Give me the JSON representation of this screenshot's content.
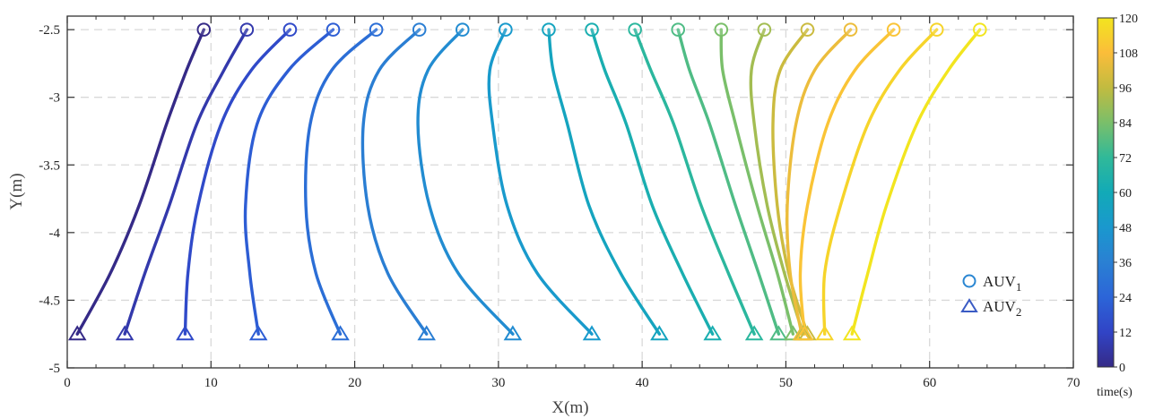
{
  "chart_data": {
    "type": "line",
    "xlabel": "X(m)",
    "ylabel": "Y(m)",
    "xlim": [
      0,
      70
    ],
    "ylim": [
      -5,
      -2.4
    ],
    "xticks": [
      0,
      10,
      20,
      30,
      40,
      50,
      60,
      70
    ],
    "yticks": [
      -5,
      -4.5,
      -4,
      -3.5,
      -3,
      -2.5
    ],
    "ytick_labels": [
      "-5",
      "-4.5",
      "-4",
      "-3.5",
      "-3",
      "-2.5"
    ],
    "grid": true,
    "legend": {
      "position": "right",
      "entries": [
        {
          "marker": "circle",
          "label": "AUV",
          "subscript": "1"
        },
        {
          "marker": "triangle",
          "label": "AUV",
          "subscript": "2"
        }
      ]
    },
    "colorbar": {
      "label": "time(s)",
      "range": [
        0,
        120
      ],
      "ticks": [
        0,
        12,
        24,
        36,
        48,
        60,
        72,
        84,
        96,
        108,
        120
      ],
      "colormap": "parula"
    },
    "series": [
      {
        "time": 0,
        "x": [
          9.5,
          8.3,
          6.9,
          5.0,
          3.0,
          0.7
        ],
        "y": [
          -2.5,
          -2.8,
          -3.2,
          -3.8,
          -4.3,
          -4.75
        ]
      },
      {
        "time": 7,
        "x": [
          12.5,
          10.9,
          9.0,
          7.1,
          5.4,
          4.0
        ],
        "y": [
          -2.5,
          -2.8,
          -3.2,
          -3.8,
          -4.3,
          -4.75
        ]
      },
      {
        "time": 14,
        "x": [
          15.5,
          12.8,
          10.7,
          9.1,
          8.4,
          8.2
        ],
        "y": [
          -2.5,
          -2.8,
          -3.2,
          -3.8,
          -4.3,
          -4.75
        ]
      },
      {
        "time": 21,
        "x": [
          18.5,
          15.4,
          13.2,
          12.4,
          12.7,
          13.3
        ],
        "y": [
          -2.5,
          -2.8,
          -3.2,
          -3.8,
          -4.3,
          -4.75
        ]
      },
      {
        "time": 28,
        "x": [
          21.5,
          18.4,
          16.9,
          16.6,
          17.3,
          19.0
        ],
        "y": [
          -2.5,
          -2.8,
          -3.2,
          -3.8,
          -4.3,
          -4.75
        ]
      },
      {
        "time": 35,
        "x": [
          24.5,
          21.7,
          20.6,
          20.9,
          22.3,
          25.0
        ],
        "y": [
          -2.5,
          -2.8,
          -3.2,
          -3.8,
          -4.3,
          -4.75
        ]
      },
      {
        "time": 42,
        "x": [
          27.5,
          25.1,
          24.4,
          25.2,
          27.2,
          31.0
        ],
        "y": [
          -2.5,
          -2.8,
          -3.2,
          -3.8,
          -4.3,
          -4.75
        ]
      },
      {
        "time": 49,
        "x": [
          30.5,
          29.4,
          29.6,
          30.6,
          32.7,
          36.5
        ],
        "y": [
          -2.5,
          -2.8,
          -3.2,
          -3.8,
          -4.3,
          -4.75
        ]
      },
      {
        "time": 56,
        "x": [
          33.5,
          33.8,
          34.8,
          36.3,
          38.5,
          41.2
        ],
        "y": [
          -2.5,
          -2.8,
          -3.2,
          -3.8,
          -4.3,
          -4.75
        ]
      },
      {
        "time": 63,
        "x": [
          36.5,
          37.4,
          38.9,
          40.7,
          42.8,
          44.9
        ],
        "y": [
          -2.5,
          -2.8,
          -3.2,
          -3.8,
          -4.3,
          -4.75
        ]
      },
      {
        "time": 70,
        "x": [
          39.5,
          40.6,
          42.2,
          44.1,
          46.0,
          47.8
        ],
        "y": [
          -2.5,
          -2.8,
          -3.2,
          -3.8,
          -4.3,
          -4.75
        ]
      },
      {
        "time": 77,
        "x": [
          42.5,
          43.3,
          44.7,
          46.5,
          48.1,
          49.5
        ],
        "y": [
          -2.5,
          -2.8,
          -3.2,
          -3.8,
          -4.3,
          -4.75
        ]
      },
      {
        "time": 84,
        "x": [
          45.5,
          45.6,
          46.5,
          48.0,
          49.4,
          50.5
        ],
        "y": [
          -2.5,
          -2.8,
          -3.2,
          -3.8,
          -4.3,
          -4.75
        ]
      },
      {
        "time": 91,
        "x": [
          48.5,
          47.6,
          47.8,
          48.7,
          49.9,
          51.2
        ],
        "y": [
          -2.5,
          -2.8,
          -3.2,
          -3.8,
          -4.3,
          -4.75
        ]
      },
      {
        "time": 98,
        "x": [
          51.5,
          49.6,
          49.1,
          49.4,
          50.2,
          51.5
        ],
        "y": [
          -2.5,
          -2.8,
          -3.2,
          -3.8,
          -4.3,
          -4.75
        ]
      },
      {
        "time": 105,
        "x": [
          54.5,
          52.0,
          50.7,
          50.1,
          50.3,
          51.1
        ],
        "y": [
          -2.5,
          -2.8,
          -3.2,
          -3.8,
          -4.3,
          -4.75
        ]
      },
      {
        "time": 110,
        "x": [
          57.5,
          54.8,
          52.9,
          51.5,
          51.0,
          51.3
        ],
        "y": [
          -2.5,
          -2.8,
          -3.2,
          -3.8,
          -4.3,
          -4.75
        ]
      },
      {
        "time": 115,
        "x": [
          60.5,
          57.9,
          55.7,
          53.8,
          52.7,
          52.7
        ],
        "y": [
          -2.5,
          -2.8,
          -3.2,
          -3.8,
          -4.3,
          -4.75
        ]
      },
      {
        "time": 120,
        "x": [
          63.5,
          61.3,
          59.1,
          57.0,
          55.7,
          54.6
        ],
        "y": [
          -2.5,
          -2.8,
          -3.2,
          -3.8,
          -4.3,
          -4.75
        ]
      }
    ]
  }
}
